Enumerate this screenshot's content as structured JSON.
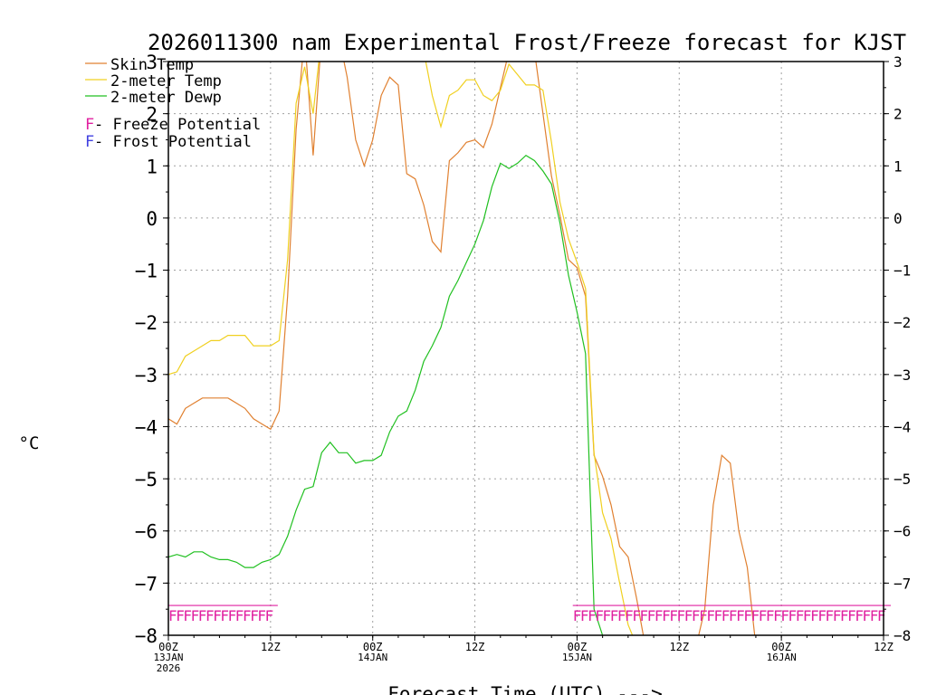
{
  "chart_data": {
    "type": "line",
    "title": "2026011300 nam Experimental Frost/Freeze forecast for KJST",
    "xlabel": "Forecast Time (UTC) --->",
    "ylabel": "°C",
    "ylim": [
      -8,
      3
    ],
    "xlim": [
      0,
      72
    ],
    "grid": true,
    "y_ticks": [
      {
        "value": -8,
        "label": "−8"
      },
      {
        "value": -7,
        "label": "−7"
      },
      {
        "value": -6,
        "label": "−6"
      },
      {
        "value": -5,
        "label": "−5"
      },
      {
        "value": -4,
        "label": "−4"
      },
      {
        "value": -3,
        "label": "−3"
      },
      {
        "value": -2,
        "label": "−2"
      },
      {
        "value": -1,
        "label": "−1"
      },
      {
        "value": 0,
        "label": "0"
      },
      {
        "value": 1,
        "label": "1"
      },
      {
        "value": 2,
        "label": "2"
      },
      {
        "value": 3,
        "label": "3"
      }
    ],
    "x_ticks": [
      {
        "hour": 0,
        "label": "00Z",
        "date": "13JAN",
        "year": "2026"
      },
      {
        "hour": 12,
        "label": "12Z",
        "date": "",
        "year": ""
      },
      {
        "hour": 24,
        "label": "00Z",
        "date": "14JAN",
        "year": ""
      },
      {
        "hour": 36,
        "label": "12Z",
        "date": "",
        "year": ""
      },
      {
        "hour": 48,
        "label": "00Z",
        "date": "15JAN",
        "year": ""
      },
      {
        "hour": 60,
        "label": "12Z",
        "date": "",
        "year": ""
      },
      {
        "hour": 72,
        "label": "00Z",
        "date": "16JAN",
        "year": ""
      },
      {
        "hour": 84,
        "label": "12Z",
        "date": "",
        "year": ""
      }
    ],
    "series": [
      {
        "name": "Skin Temp",
        "color": "#e08030",
        "points": [
          [
            0,
            -3.85
          ],
          [
            1,
            -3.95
          ],
          [
            2,
            -3.65
          ],
          [
            3,
            -3.55
          ],
          [
            4,
            -3.45
          ],
          [
            5,
            -3.45
          ],
          [
            6,
            -3.45
          ],
          [
            7,
            -3.45
          ],
          [
            8,
            -3.55
          ],
          [
            9,
            -3.65
          ],
          [
            10,
            -3.85
          ],
          [
            11,
            -3.95
          ],
          [
            12,
            -4.05
          ],
          [
            13,
            -3.7
          ],
          [
            14,
            -1.5
          ],
          [
            15,
            1.7
          ],
          [
            16,
            3.5
          ],
          [
            17,
            1.2
          ],
          [
            18,
            3.5
          ],
          [
            19,
            3.6
          ],
          [
            20,
            3.5
          ],
          [
            21,
            2.7
          ],
          [
            22,
            1.5
          ],
          [
            23,
            1.0
          ],
          [
            24,
            1.5
          ],
          [
            25,
            2.35
          ],
          [
            26,
            2.7
          ],
          [
            27,
            2.55
          ],
          [
            28,
            0.85
          ],
          [
            29,
            0.75
          ],
          [
            30,
            0.25
          ],
          [
            31,
            -0.45
          ],
          [
            32,
            -0.65
          ],
          [
            33,
            1.1
          ],
          [
            34,
            1.25
          ],
          [
            35,
            1.45
          ],
          [
            36,
            1.5
          ],
          [
            37,
            1.35
          ],
          [
            38,
            1.8
          ],
          [
            39,
            2.5
          ],
          [
            40,
            3.2
          ],
          [
            41,
            3.5
          ],
          [
            42,
            3.5
          ],
          [
            43,
            3.2
          ],
          [
            44,
            2.0
          ],
          [
            45,
            0.8
          ],
          [
            46,
            0.05
          ],
          [
            47,
            -0.8
          ],
          [
            48,
            -0.95
          ],
          [
            49,
            -1.5
          ],
          [
            50,
            -4.55
          ],
          [
            51,
            -4.95
          ],
          [
            52,
            -5.5
          ],
          [
            53,
            -6.3
          ],
          [
            54,
            -6.5
          ],
          [
            55,
            -7.3
          ],
          [
            56,
            -8.2
          ],
          [
            62,
            -8.2
          ],
          [
            63,
            -7.5
          ],
          [
            64,
            -5.5
          ],
          [
            65,
            -4.55
          ],
          [
            66,
            -4.7
          ],
          [
            67,
            -6.0
          ],
          [
            68,
            -6.7
          ],
          [
            69,
            -8.2
          ]
        ]
      },
      {
        "name": "2-meter Temp",
        "color": "#f0d020",
        "points": [
          [
            0,
            -3.0
          ],
          [
            1,
            -2.95
          ],
          [
            2,
            -2.65
          ],
          [
            3,
            -2.55
          ],
          [
            4,
            -2.45
          ],
          [
            5,
            -2.35
          ],
          [
            6,
            -2.35
          ],
          [
            7,
            -2.25
          ],
          [
            8,
            -2.25
          ],
          [
            9,
            -2.25
          ],
          [
            10,
            -2.45
          ],
          [
            11,
            -2.45
          ],
          [
            12,
            -2.45
          ],
          [
            13,
            -2.35
          ],
          [
            14,
            -0.8
          ],
          [
            15,
            2.2
          ],
          [
            16,
            2.9
          ],
          [
            17,
            2.0
          ],
          [
            18,
            3.5
          ],
          [
            20,
            3.5
          ],
          [
            22,
            3.5
          ],
          [
            24,
            3.5
          ],
          [
            26,
            3.5
          ],
          [
            28,
            3.5
          ],
          [
            30,
            3.2
          ],
          [
            31,
            2.35
          ],
          [
            32,
            1.75
          ],
          [
            33,
            2.35
          ],
          [
            34,
            2.45
          ],
          [
            35,
            2.65
          ],
          [
            36,
            2.65
          ],
          [
            37,
            2.35
          ],
          [
            38,
            2.25
          ],
          [
            39,
            2.45
          ],
          [
            40,
            2.95
          ],
          [
            41,
            2.75
          ],
          [
            42,
            2.55
          ],
          [
            43,
            2.55
          ],
          [
            44,
            2.45
          ],
          [
            45,
            1.45
          ],
          [
            46,
            0.3
          ],
          [
            47,
            -0.4
          ],
          [
            48,
            -0.85
          ],
          [
            49,
            -1.35
          ],
          [
            50,
            -4.5
          ],
          [
            51,
            -5.65
          ],
          [
            52,
            -6.15
          ],
          [
            53,
            -7.0
          ],
          [
            54,
            -7.8
          ],
          [
            55,
            -8.2
          ]
        ]
      },
      {
        "name": "2-meter Dewp",
        "color": "#20c020",
        "points": [
          [
            0,
            -6.5
          ],
          [
            1,
            -6.45
          ],
          [
            2,
            -6.5
          ],
          [
            3,
            -6.4
          ],
          [
            4,
            -6.4
          ],
          [
            5,
            -6.5
          ],
          [
            6,
            -6.55
          ],
          [
            7,
            -6.55
          ],
          [
            8,
            -6.6
          ],
          [
            9,
            -6.7
          ],
          [
            10,
            -6.7
          ],
          [
            11,
            -6.6
          ],
          [
            12,
            -6.55
          ],
          [
            13,
            -6.45
          ],
          [
            14,
            -6.1
          ],
          [
            15,
            -5.6
          ],
          [
            16,
            -5.2
          ],
          [
            17,
            -5.15
          ],
          [
            18,
            -4.5
          ],
          [
            19,
            -4.3
          ],
          [
            20,
            -4.5
          ],
          [
            21,
            -4.5
          ],
          [
            22,
            -4.7
          ],
          [
            23,
            -4.65
          ],
          [
            24,
            -4.65
          ],
          [
            25,
            -4.55
          ],
          [
            26,
            -4.1
          ],
          [
            27,
            -3.8
          ],
          [
            28,
            -3.7
          ],
          [
            29,
            -3.3
          ],
          [
            30,
            -2.75
          ],
          [
            31,
            -2.45
          ],
          [
            32,
            -2.1
          ],
          [
            33,
            -1.5
          ],
          [
            34,
            -1.2
          ],
          [
            35,
            -0.85
          ],
          [
            36,
            -0.5
          ],
          [
            37,
            -0.05
          ],
          [
            38,
            0.6
          ],
          [
            39,
            1.05
          ],
          [
            40,
            0.95
          ],
          [
            41,
            1.05
          ],
          [
            42,
            1.2
          ],
          [
            43,
            1.1
          ],
          [
            44,
            0.9
          ],
          [
            45,
            0.65
          ],
          [
            46,
            -0.1
          ],
          [
            47,
            -1.1
          ],
          [
            48,
            -1.8
          ],
          [
            49,
            -2.6
          ],
          [
            50,
            -7.5
          ],
          [
            51,
            -8.0
          ],
          [
            51.5,
            -8.2
          ]
        ]
      }
    ],
    "legend": {
      "placement": "top-left",
      "entries": [
        {
          "label": "Skin Temp",
          "color": "#e08030"
        },
        {
          "label": "2-meter Temp",
          "color": "#f0d020"
        },
        {
          "label": "2-meter Dewp",
          "color": "#20c020"
        }
      ],
      "potential": [
        {
          "marker": "F",
          "text": " - Freeze Potential",
          "color": "#e020a0"
        },
        {
          "marker": "F",
          "text": " - Frost Potential",
          "color": "#4040e0"
        }
      ]
    },
    "freeze_markers": {
      "color": "#e020a0",
      "y_value": -7.55,
      "ranges": [
        {
          "start_hour": 0,
          "end_hour": 12
        },
        {
          "start_hour": 47.5,
          "end_hour": 84
        }
      ]
    }
  }
}
